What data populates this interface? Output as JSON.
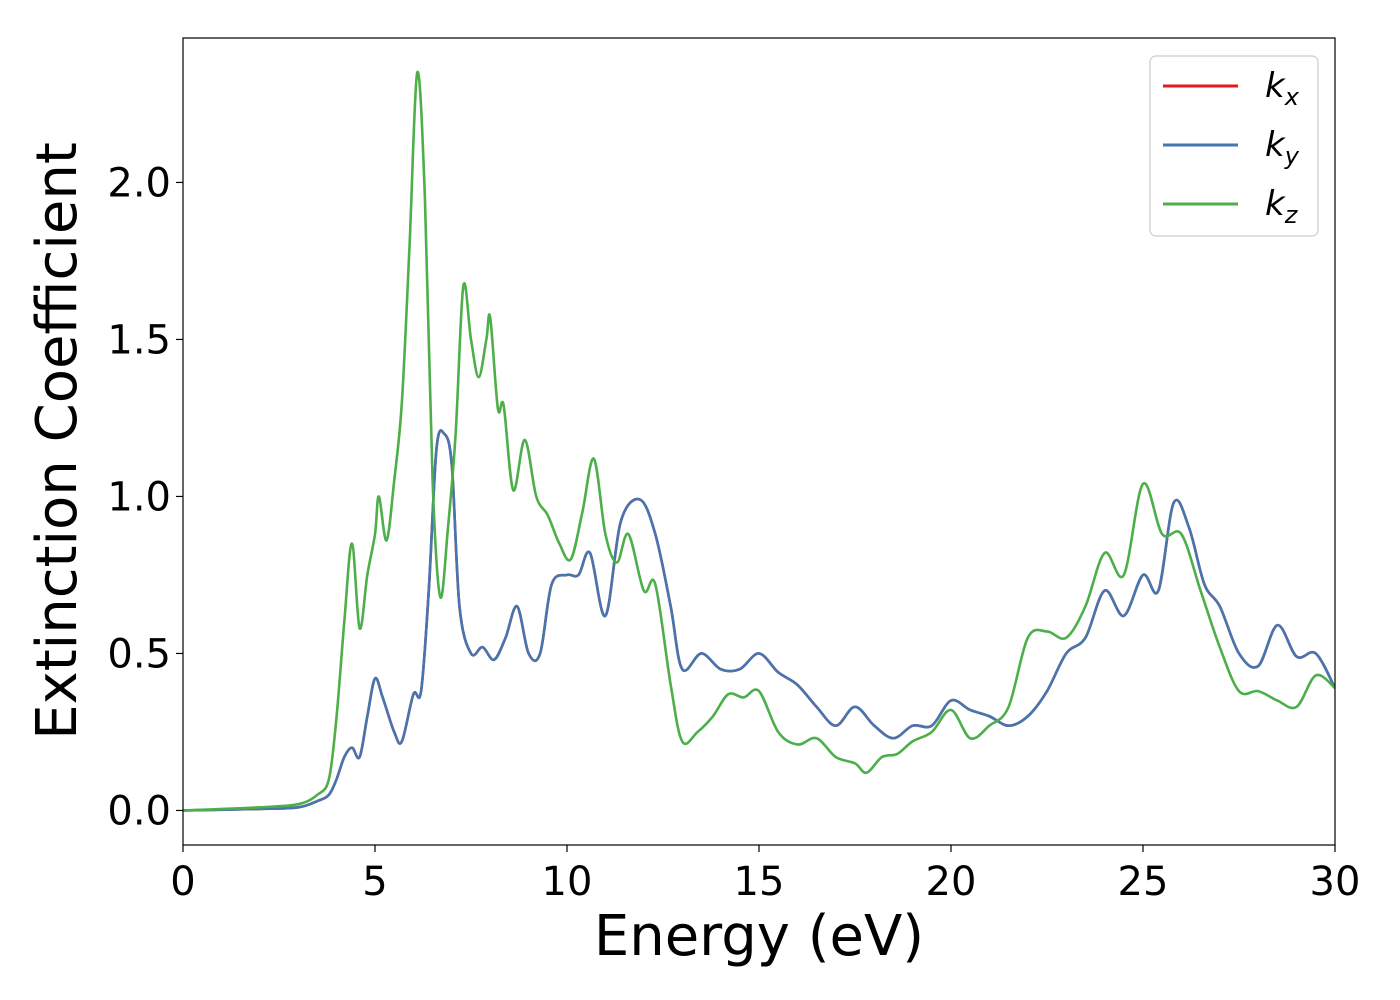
{
  "chart_data": {
    "type": "line",
    "title": "",
    "xlabel": "Energy (eV)",
    "ylabel": "Extinction Coefficient",
    "xlim": [
      0,
      30
    ],
    "ylim": [
      -0.11,
      2.46
    ],
    "xticks": [
      0,
      5,
      10,
      15,
      20,
      25,
      30
    ],
    "xtick_labels": [
      "0",
      "5",
      "10",
      "15",
      "20",
      "25",
      "30"
    ],
    "yticks": [
      0.0,
      0.5,
      1.0,
      1.5,
      2.0
    ],
    "ytick_labels": [
      "0.0",
      "0.5",
      "1.0",
      "1.5",
      "2.0"
    ],
    "grid": false,
    "legend_position": "top-right",
    "series": [
      {
        "name": "k",
        "subscript": "x",
        "color": "#e41a1c",
        "x": [
          0,
          2,
          3,
          3.5,
          3.8,
          4.0,
          4.2,
          4.4,
          4.6,
          4.8,
          5.0,
          5.2,
          5.5,
          5.7,
          6.0,
          6.2,
          6.4,
          6.6,
          6.8,
          7.0,
          7.2,
          7.5,
          7.8,
          8.1,
          8.4,
          8.7,
          9.0,
          9.3,
          9.6,
          10.0,
          10.3,
          10.6,
          11.0,
          11.4,
          11.9,
          12.3,
          12.7,
          13.0,
          13.5,
          14.0,
          14.5,
          15.0,
          15.5,
          16.0,
          16.5,
          17.0,
          17.5,
          18.0,
          18.5,
          19.0,
          19.5,
          20.0,
          20.5,
          21.0,
          21.5,
          22.0,
          22.5,
          23.0,
          23.5,
          24.0,
          24.5,
          25.0,
          25.4,
          25.8,
          26.2,
          26.6,
          27.0,
          27.5,
          28.0,
          28.5,
          29.0,
          29.5,
          30.0
        ],
        "values": [
          0.0,
          0.005,
          0.01,
          0.03,
          0.05,
          0.1,
          0.17,
          0.2,
          0.17,
          0.3,
          0.42,
          0.36,
          0.25,
          0.22,
          0.37,
          0.38,
          0.7,
          1.15,
          1.2,
          1.1,
          0.65,
          0.5,
          0.52,
          0.48,
          0.55,
          0.65,
          0.5,
          0.5,
          0.72,
          0.75,
          0.75,
          0.82,
          0.62,
          0.92,
          0.99,
          0.88,
          0.65,
          0.45,
          0.5,
          0.45,
          0.45,
          0.5,
          0.44,
          0.4,
          0.33,
          0.27,
          0.33,
          0.27,
          0.23,
          0.27,
          0.27,
          0.35,
          0.32,
          0.3,
          0.27,
          0.3,
          0.38,
          0.5,
          0.55,
          0.7,
          0.62,
          0.75,
          0.7,
          0.98,
          0.9,
          0.72,
          0.65,
          0.5,
          0.46,
          0.59,
          0.49,
          0.5,
          0.39
        ]
      },
      {
        "name": "k",
        "subscript": "y",
        "color": "#4576b0",
        "x": [
          0,
          2,
          3,
          3.5,
          3.8,
          4.0,
          4.2,
          4.4,
          4.6,
          4.8,
          5.0,
          5.2,
          5.5,
          5.7,
          6.0,
          6.2,
          6.4,
          6.6,
          6.8,
          7.0,
          7.2,
          7.5,
          7.8,
          8.1,
          8.4,
          8.7,
          9.0,
          9.3,
          9.6,
          10.0,
          10.3,
          10.6,
          11.0,
          11.4,
          11.9,
          12.3,
          12.7,
          13.0,
          13.5,
          14.0,
          14.5,
          15.0,
          15.5,
          16.0,
          16.5,
          17.0,
          17.5,
          18.0,
          18.5,
          19.0,
          19.5,
          20.0,
          20.5,
          21.0,
          21.5,
          22.0,
          22.5,
          23.0,
          23.5,
          24.0,
          24.5,
          25.0,
          25.4,
          25.8,
          26.2,
          26.6,
          27.0,
          27.5,
          28.0,
          28.5,
          29.0,
          29.5,
          30.0
        ],
        "values": [
          0.0,
          0.005,
          0.01,
          0.03,
          0.05,
          0.1,
          0.17,
          0.2,
          0.17,
          0.3,
          0.42,
          0.36,
          0.25,
          0.22,
          0.37,
          0.38,
          0.7,
          1.15,
          1.2,
          1.1,
          0.65,
          0.5,
          0.52,
          0.48,
          0.55,
          0.65,
          0.5,
          0.5,
          0.72,
          0.75,
          0.75,
          0.82,
          0.62,
          0.92,
          0.99,
          0.88,
          0.65,
          0.45,
          0.5,
          0.45,
          0.45,
          0.5,
          0.44,
          0.4,
          0.33,
          0.27,
          0.33,
          0.27,
          0.23,
          0.27,
          0.27,
          0.35,
          0.32,
          0.3,
          0.27,
          0.3,
          0.38,
          0.5,
          0.55,
          0.7,
          0.62,
          0.75,
          0.7,
          0.98,
          0.9,
          0.72,
          0.65,
          0.5,
          0.46,
          0.59,
          0.49,
          0.5,
          0.39
        ]
      },
      {
        "name": "k",
        "subscript": "z",
        "color": "#4daf4a",
        "x": [
          0,
          2,
          3,
          3.5,
          3.8,
          4.0,
          4.2,
          4.4,
          4.6,
          4.8,
          5.0,
          5.1,
          5.3,
          5.5,
          5.7,
          5.9,
          6.1,
          6.3,
          6.5,
          6.7,
          6.9,
          7.1,
          7.3,
          7.5,
          7.7,
          7.9,
          8.0,
          8.2,
          8.35,
          8.6,
          8.9,
          9.2,
          9.5,
          9.8,
          10.1,
          10.4,
          10.7,
          11.0,
          11.3,
          11.6,
          12.0,
          12.3,
          12.7,
          13.0,
          13.4,
          13.8,
          14.2,
          14.6,
          15.0,
          15.5,
          16.0,
          16.5,
          17.0,
          17.5,
          17.8,
          18.2,
          18.6,
          19.0,
          19.5,
          20.0,
          20.5,
          21.0,
          21.5,
          22.0,
          22.5,
          23.0,
          23.5,
          24.0,
          24.5,
          25.0,
          25.5,
          26.0,
          26.5,
          27.0,
          27.5,
          28.0,
          28.5,
          29.0,
          29.5,
          30.0
        ],
        "values": [
          0.0,
          0.01,
          0.02,
          0.05,
          0.1,
          0.3,
          0.6,
          0.85,
          0.58,
          0.75,
          0.88,
          1.0,
          0.86,
          1.05,
          1.3,
          1.8,
          2.35,
          1.95,
          1.05,
          0.68,
          0.9,
          1.2,
          1.67,
          1.5,
          1.38,
          1.5,
          1.57,
          1.28,
          1.29,
          1.02,
          1.18,
          1.0,
          0.94,
          0.85,
          0.8,
          0.95,
          1.12,
          0.88,
          0.79,
          0.88,
          0.7,
          0.72,
          0.4,
          0.22,
          0.25,
          0.3,
          0.37,
          0.36,
          0.38,
          0.25,
          0.21,
          0.23,
          0.17,
          0.15,
          0.12,
          0.17,
          0.18,
          0.22,
          0.25,
          0.32,
          0.23,
          0.27,
          0.33,
          0.55,
          0.57,
          0.55,
          0.65,
          0.82,
          0.75,
          1.04,
          0.88,
          0.88,
          0.7,
          0.52,
          0.38,
          0.38,
          0.35,
          0.33,
          0.43,
          0.39
        ]
      }
    ]
  }
}
